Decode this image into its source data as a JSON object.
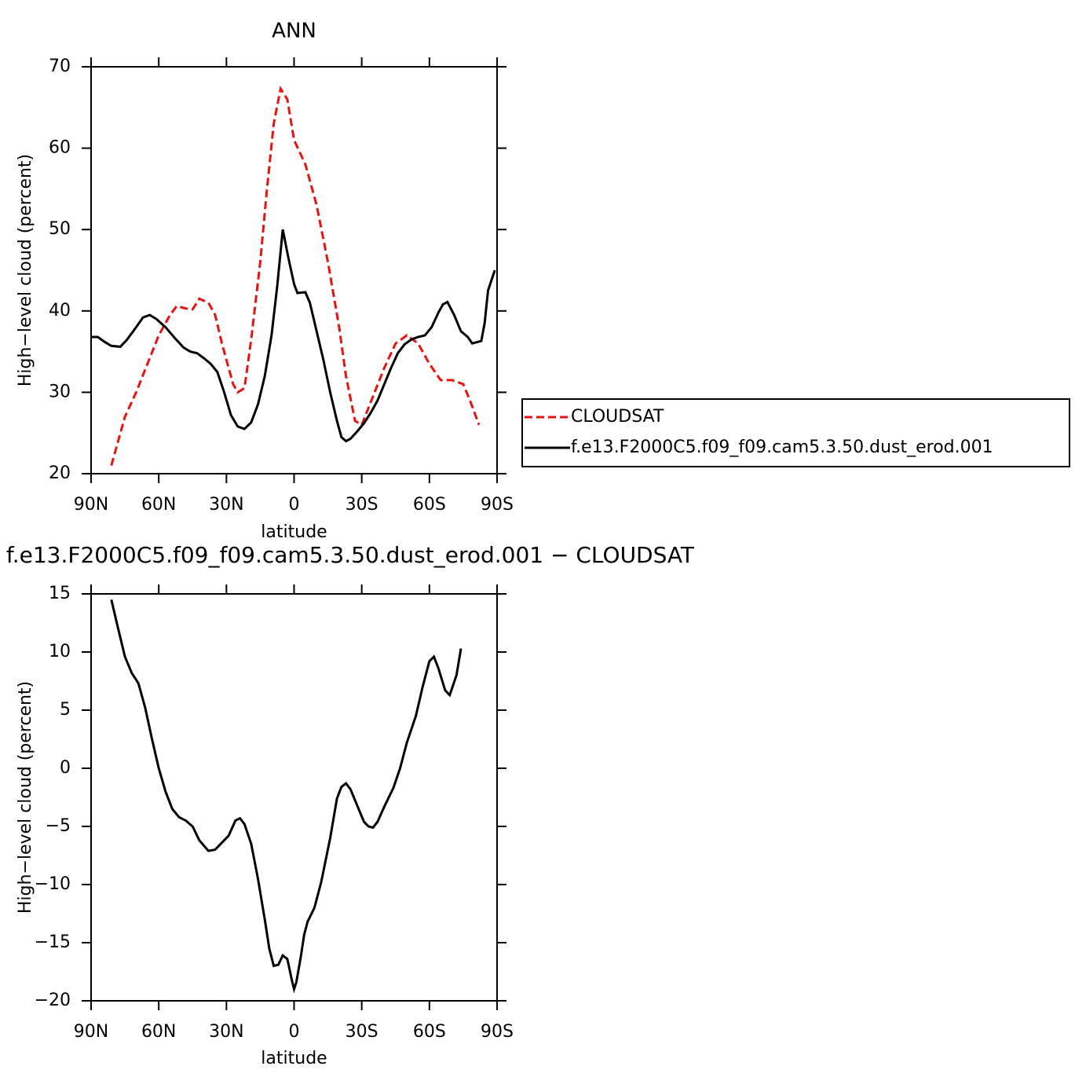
{
  "chart_data": [
    {
      "type": "line",
      "title": "ANN",
      "x_label": "latitude",
      "y_label": "High−level cloud (percent)",
      "xlim": [
        90,
        -90
      ],
      "ylim": [
        20,
        70
      ],
      "xticks": [
        {
          "value": 90,
          "label": "90N"
        },
        {
          "value": 60,
          "label": "60N"
        },
        {
          "value": 30,
          "label": "30N"
        },
        0,
        {
          "value": -30,
          "label": "30S"
        },
        {
          "value": -60,
          "label": "60S"
        },
        {
          "value": -90,
          "label": "90S"
        }
      ],
      "yticks": [
        20,
        30,
        40,
        50,
        60,
        70
      ],
      "legend": "outside-right",
      "series": [
        {
          "name": "CLOUDSAT",
          "color": "#e8120f",
          "dashed": true,
          "x": [
            81,
            75,
            70,
            65,
            60,
            55,
            52,
            48,
            45,
            42,
            38,
            35,
            32,
            30,
            27,
            25,
            22,
            19,
            15,
            12,
            9,
            6,
            3,
            0,
            -5,
            -10,
            -15,
            -20,
            -23,
            -27,
            -30,
            -35,
            -40,
            -45,
            -50,
            -55,
            -60,
            -65,
            -70,
            -75,
            -78,
            -82
          ],
          "values": [
            21,
            27,
            30,
            33.5,
            37,
            39.5,
            40.6,
            40.3,
            40.2,
            41.5,
            41,
            39.5,
            36,
            34,
            31,
            30,
            30.5,
            36.5,
            46,
            55,
            63,
            67.3,
            66,
            61,
            58,
            53,
            46,
            38,
            32,
            26.5,
            26,
            29.5,
            33,
            36,
            37,
            36,
            33.5,
            31.5,
            31.5,
            31,
            29,
            26
          ]
        },
        {
          "name": "f.e13.F2000C5.f09_f09.cam5.3.50.dust_erod.001",
          "color": "#000000",
          "dashed": false,
          "x": [
            90,
            87,
            84,
            81,
            77,
            74,
            70,
            67,
            64,
            61,
            57,
            53,
            49,
            46,
            43,
            40,
            37,
            34,
            31,
            28,
            25,
            22,
            19,
            16,
            13,
            10,
            7.5,
            5,
            2.5,
            0,
            -1.5,
            -5,
            -7,
            -10,
            -13,
            -16,
            -19,
            -21,
            -23,
            -25,
            -28,
            -31,
            -34,
            -37,
            -40,
            -43,
            -46,
            -49,
            -52,
            -55,
            -58,
            -61,
            -64,
            -66,
            -68,
            -71,
            -74,
            -77,
            -79,
            -83,
            -84.5,
            -86,
            -89
          ],
          "values": [
            36.8,
            36.8,
            36.2,
            35.7,
            35.6,
            36.5,
            38,
            39.2,
            39.5,
            39,
            38,
            36.7,
            35.5,
            35,
            34.8,
            34.2,
            33.5,
            32.5,
            30,
            27.2,
            25.8,
            25.5,
            26.3,
            28.5,
            32,
            37,
            43,
            50,
            46.5,
            43.3,
            42.2,
            42.3,
            41,
            37.5,
            34,
            30,
            26.5,
            24.5,
            24,
            24.3,
            25.2,
            26.2,
            27.5,
            29,
            31,
            33,
            34.8,
            35.9,
            36.5,
            36.8,
            37,
            38,
            39.8,
            40.8,
            41.1,
            39.5,
            37.5,
            36.8,
            36,
            36.3,
            38.5,
            42.5,
            45
          ]
        }
      ]
    },
    {
      "type": "line",
      "title": "f.e13.F2000C5.f09_f09.cam5.3.50.dust_erod.001  −  CLOUDSAT",
      "x_label": "latitude",
      "y_label": "High−level cloud (percent)",
      "xlim": [
        90,
        -90
      ],
      "ylim": [
        -20,
        15
      ],
      "xticks": [
        {
          "value": 90,
          "label": "90N"
        },
        {
          "value": 60,
          "label": "60N"
        },
        {
          "value": 30,
          "label": "30N"
        },
        0,
        {
          "value": -30,
          "label": "30S"
        },
        {
          "value": -60,
          "label": "60S"
        },
        {
          "value": -90,
          "label": "90S"
        }
      ],
      "yticks": [
        {
          "value": -20,
          "label": "−20"
        },
        {
          "value": -15,
          "label": "−15"
        },
        {
          "value": -10,
          "label": "−10"
        },
        {
          "value": -5,
          "label": "−5"
        },
        0,
        5,
        10,
        15
      ],
      "series": [
        {
          "color": "#000000",
          "dashed": false,
          "x": [
            81,
            78,
            75,
            72,
            69,
            66,
            63,
            60,
            57,
            54,
            51,
            48,
            45,
            42,
            38,
            35,
            32,
            29,
            26,
            24,
            22,
            19,
            16,
            13,
            11,
            9,
            7,
            5,
            3,
            1,
            0,
            -1,
            -3,
            -4.5,
            -6,
            -9,
            -12,
            -16,
            -19,
            -21,
            -23,
            -25,
            -28,
            -31,
            -33,
            -35,
            -37,
            -40,
            -44,
            -47,
            -50,
            -54,
            -57,
            -60,
            -62,
            -64,
            -67,
            -69,
            -72,
            -74
          ],
          "values": [
            14.5,
            12,
            9.6,
            8.2,
            7.3,
            5.2,
            2.5,
            0,
            -2,
            -3.5,
            -4.2,
            -4.5,
            -5,
            -6.2,
            -7.1,
            -7,
            -6.4,
            -5.8,
            -4.5,
            -4.3,
            -4.8,
            -6.5,
            -9.5,
            -13,
            -15.5,
            -17,
            -16.9,
            -16.1,
            -16.4,
            -18.2,
            -19,
            -18.4,
            -16.2,
            -14.3,
            -13.2,
            -12,
            -9.8,
            -6,
            -2.6,
            -1.6,
            -1.3,
            -1.8,
            -3.2,
            -4.6,
            -5,
            -5.1,
            -4.6,
            -3.3,
            -1.7,
            0,
            2.2,
            4.5,
            7,
            9.2,
            9.6,
            8.6,
            6.7,
            6.3,
            8,
            10.3
          ]
        }
      ]
    }
  ]
}
